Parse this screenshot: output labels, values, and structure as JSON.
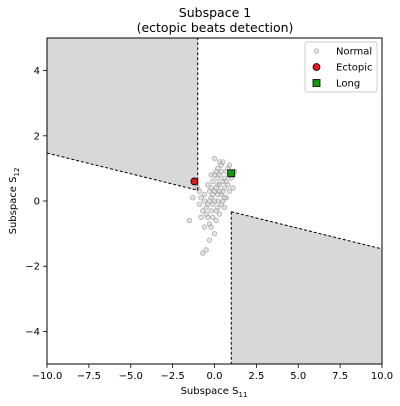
{
  "chart_data": {
    "type": "scatter",
    "title_line1": "Subspace 1",
    "title_line2": "(ectopic beats detection)",
    "xlabel": "Subspace S",
    "xlabel_sub": "11",
    "ylabel": "Subspace S",
    "ylabel_sub": "12",
    "xlim": [
      -10,
      10
    ],
    "ylim": [
      -5,
      5
    ],
    "xticks": [
      -10,
      -7.5,
      -5,
      -2.5,
      0,
      2.5,
      5,
      7.5,
      10
    ],
    "xtick_labels": [
      "−10.0",
      "−7.5",
      "−5.0",
      "−2.5",
      "0.0",
      "2.5",
      "5.0",
      "7.5",
      "10.0"
    ],
    "yticks": [
      -4,
      -2,
      0,
      2,
      4
    ],
    "ytick_labels": [
      "−4",
      "−2",
      "0",
      "2",
      "4"
    ],
    "grid": false,
    "legend_position": "top-right",
    "legend": [
      {
        "label": "Normal",
        "marker": "circle",
        "fill": "#cccccc",
        "stroke": "#888888"
      },
      {
        "label": "Ectopic",
        "marker": "circle",
        "fill": "#e31a1c",
        "stroke": "#000000"
      },
      {
        "label": "Long",
        "marker": "square",
        "fill": "#119911",
        "stroke": "#000000"
      }
    ],
    "regions": [
      {
        "polygon": [
          [
            -10,
            5
          ],
          [
            -1,
            5
          ],
          [
            -1,
            0.33
          ],
          [
            -10,
            1.47
          ]
        ],
        "fill": "#d8d8d8"
      },
      {
        "polygon": [
          [
            1,
            -5
          ],
          [
            10,
            -5
          ],
          [
            10,
            -1.47
          ],
          [
            1,
            -0.33
          ]
        ],
        "fill": "#d8d8d8"
      }
    ],
    "boundary_lines": [
      [
        [
          -10,
          1.47
        ],
        [
          -1,
          0.33
        ]
      ],
      [
        [
          -1,
          0.33
        ],
        [
          -1,
          5
        ]
      ],
      [
        [
          1,
          -0.33
        ],
        [
          10,
          -1.47
        ]
      ],
      [
        [
          1,
          -0.33
        ],
        [
          1,
          -5
        ]
      ]
    ],
    "series": [
      {
        "name": "Normal",
        "marker": "circle",
        "points": [
          [
            -0.2,
            0.1
          ],
          [
            0.0,
            0.3
          ],
          [
            0.2,
            0.5
          ],
          [
            0.4,
            0.2
          ],
          [
            -0.1,
            -0.1
          ],
          [
            0.3,
            0.8
          ],
          [
            0.5,
            0.6
          ],
          [
            -0.3,
            0.0
          ],
          [
            0.1,
            -0.3
          ],
          [
            0.6,
            0.4
          ],
          [
            -0.5,
            -0.2
          ],
          [
            0.2,
            1.0
          ],
          [
            0.0,
            1.3
          ],
          [
            0.4,
            1.1
          ],
          [
            -0.6,
            0.2
          ],
          [
            0.7,
            0.9
          ],
          [
            -0.4,
            -0.5
          ],
          [
            0.1,
            -0.6
          ],
          [
            -0.2,
            -0.8
          ],
          [
            0.3,
            -0.4
          ],
          [
            -0.7,
            -0.3
          ],
          [
            0.8,
            0.5
          ],
          [
            -0.1,
            0.6
          ],
          [
            0.5,
            1.2
          ],
          [
            0.9,
            0.3
          ],
          [
            -0.8,
            0.1
          ],
          [
            0.0,
            -1.0
          ],
          [
            -0.3,
            -1.2
          ],
          [
            -0.5,
            -1.5
          ],
          [
            -0.7,
            -1.6
          ],
          [
            0.6,
            -0.2
          ],
          [
            0.2,
            0.0
          ],
          [
            -0.9,
            -0.1
          ],
          [
            1.0,
            0.7
          ],
          [
            -1.0,
            0.4
          ],
          [
            0.3,
            0.3
          ],
          [
            -0.2,
            0.4
          ],
          [
            0.4,
            -0.1
          ],
          [
            -0.4,
            0.5
          ],
          [
            0.1,
            0.9
          ],
          [
            0.7,
            0.1
          ],
          [
            -1.3,
            0.1
          ],
          [
            -1.5,
            -0.6
          ],
          [
            -0.6,
            -0.8
          ],
          [
            0.9,
            1.1
          ],
          [
            0.5,
            0.0
          ],
          [
            -0.1,
            0.2
          ],
          [
            0.2,
            0.7
          ],
          [
            0.6,
            0.7
          ],
          [
            -0.3,
            0.3
          ],
          [
            0.0,
            0.0
          ],
          [
            0.3,
            0.5
          ],
          [
            -0.5,
            -0.4
          ],
          [
            0.4,
            0.9
          ],
          [
            -0.2,
            -0.3
          ],
          [
            0.8,
            1.0
          ],
          [
            1.1,
            0.4
          ],
          [
            0.1,
            0.4
          ],
          [
            -0.6,
            0.0
          ],
          [
            0.2,
            -0.2
          ],
          [
            0.5,
            0.3
          ],
          [
            -0.4,
            -0.1
          ],
          [
            0.0,
            0.8
          ],
          [
            0.3,
            1.2
          ],
          [
            -0.8,
            -0.5
          ],
          [
            0.6,
            0.1
          ],
          [
            -0.1,
            -0.5
          ],
          [
            0.7,
            0.6
          ],
          [
            -0.3,
            -0.7
          ],
          [
            0.9,
            0.8
          ],
          [
            0.2,
            0.2
          ],
          [
            -0.9,
            0.3
          ],
          [
            1.2,
            0.9
          ],
          [
            -0.2,
            0.8
          ]
        ]
      },
      {
        "name": "Ectopic",
        "marker": "circle",
        "points": [
          [
            -1.2,
            0.6
          ]
        ]
      },
      {
        "name": "Long",
        "marker": "square",
        "points": [
          [
            1.0,
            0.85
          ]
        ]
      }
    ]
  }
}
